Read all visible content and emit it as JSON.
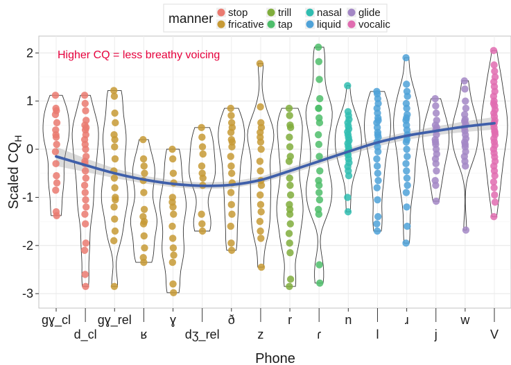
{
  "chart_data": {
    "type": "violin",
    "xlabel": "Phone",
    "ylabel": "Scaled CQ",
    "ylabel_subscript": "H",
    "ylim": [
      -3.3,
      2.35
    ],
    "yticks": [
      -3,
      -2,
      -1,
      0,
      1,
      2
    ],
    "ytick_labels": [
      "-3",
      "-2",
      "-1",
      "0",
      "1",
      "2"
    ],
    "grid": true,
    "annotation": {
      "text": "Higher CQ = less breathy voicing",
      "color": "#e6003c"
    },
    "legend": {
      "title": "manner",
      "position": "top",
      "entries": [
        {
          "label": "stop",
          "color": "#ea7a70"
        },
        {
          "label": "fricative",
          "color": "#c79a35"
        },
        {
          "label": "trill",
          "color": "#80ad3c"
        },
        {
          "label": "tap",
          "color": "#4dbd6a"
        },
        {
          "label": "nasal",
          "color": "#30bdb0"
        },
        {
          "label": "liquid",
          "color": "#4fa2d8"
        },
        {
          "label": "glide",
          "color": "#a387c5"
        },
        {
          "label": "vocalic",
          "color": "#e06cb0"
        }
      ]
    },
    "categories": [
      "gɣ_cl",
      "d_cl",
      "gɣ_rel",
      "ʁ",
      "ɣ",
      "dʒ_rel",
      "ð",
      "z",
      "r",
      "ɾ",
      "n",
      "l",
      "ɹ",
      "j",
      "w",
      "V"
    ],
    "category_manner": [
      "stop",
      "stop",
      "fricative",
      "fricative",
      "fricative",
      "fricative",
      "fricative",
      "fricative",
      "trill",
      "tap",
      "nasal",
      "liquid",
      "liquid",
      "glide",
      "glide",
      "vocalic"
    ],
    "points": [
      [
        1.12,
        0.85,
        0.8,
        0.55,
        0.4,
        0.25,
        0.1,
        -0.05,
        -0.3,
        -0.55,
        -0.7,
        -0.85,
        -1.3,
        -1.38,
        0.72,
        0.3
      ],
      [
        1.12,
        0.95,
        0.8,
        0.6,
        0.5,
        0.4,
        0.3,
        0.2,
        0.1,
        0.0,
        -0.15,
        -0.3,
        -0.45,
        -0.6,
        -0.75,
        -0.9,
        -1.05,
        -1.2,
        -1.35,
        -1.55,
        -1.95,
        -2.1,
        -2.6,
        -2.85,
        0.45,
        -0.25
      ],
      [
        1.22,
        1.1,
        0.75,
        0.55,
        0.3,
        0.05,
        -0.2,
        -0.45,
        -0.6,
        -0.8,
        -1.0,
        -1.2,
        -1.45,
        -1.7,
        -1.9,
        -2.85,
        0.2,
        -1.05
      ],
      [
        0.2,
        -0.2,
        -0.35,
        -0.5,
        -0.65,
        -0.9,
        -1.25,
        -1.4,
        -1.55,
        -1.8,
        -2.05,
        -2.25,
        -2.35,
        -1.5
      ],
      [
        0.0,
        -0.2,
        -0.5,
        -0.7,
        -1.0,
        -1.2,
        -1.35,
        -1.6,
        -1.85,
        -2.05,
        -2.2,
        -2.35,
        -2.8,
        -2.98,
        -1.1
      ],
      [
        0.45,
        0.25,
        0.05,
        -0.1,
        -0.35,
        -0.5,
        -0.75,
        -1.35,
        -1.55,
        -1.7,
        -0.6
      ],
      [
        0.85,
        0.7,
        0.55,
        0.45,
        0.35,
        0.2,
        0.05,
        -0.15,
        -0.35,
        -0.5,
        -0.7,
        -0.9,
        -1.15,
        -1.35,
        -1.6,
        -1.95,
        -2.1,
        0.15
      ],
      [
        1.78,
        0.88,
        0.55,
        0.45,
        0.35,
        0.15,
        0.0,
        -0.25,
        -0.45,
        -0.65,
        -0.75,
        -0.95,
        -1.15,
        -1.3,
        -1.5,
        -1.7,
        -1.85,
        -2.45,
        0.25
      ],
      [
        0.85,
        0.7,
        0.5,
        0.45,
        0.25,
        0.05,
        -0.15,
        -0.25,
        -0.6,
        -0.75,
        -0.95,
        -1.15,
        -1.35,
        -1.55,
        -1.75,
        -1.95,
        -2.15,
        -2.7,
        -2.85,
        -1.25
      ],
      [
        2.12,
        1.82,
        1.45,
        1.05,
        0.85,
        0.65,
        0.55,
        0.3,
        0.1,
        -0.15,
        -0.45,
        -0.65,
        -0.75,
        -1.05,
        -1.25,
        -1.35,
        -2.4,
        -2.78,
        0.85,
        -0.9
      ],
      [
        1.32,
        0.78,
        0.7,
        0.62,
        0.55,
        0.48,
        0.42,
        0.36,
        0.3,
        0.24,
        0.18,
        0.12,
        0.06,
        0.0,
        -0.06,
        -0.12,
        -0.2,
        -0.28,
        -0.36,
        -0.45,
        -0.55,
        -1.0,
        -1.3
      ],
      [
        1.2,
        1.15,
        1.05,
        0.95,
        0.85,
        0.75,
        0.65,
        0.55,
        0.45,
        0.35,
        0.25,
        0.15,
        0.05,
        -0.05,
        -0.2,
        -0.35,
        -0.5,
        -0.65,
        -0.8,
        -1.05,
        -1.4,
        -1.55,
        -1.7,
        0.3,
        0.6
      ],
      [
        1.9,
        1.35,
        1.2,
        1.1,
        0.95,
        0.85,
        0.72,
        0.6,
        0.5,
        0.4,
        0.3,
        0.15,
        0.0,
        -0.15,
        -0.3,
        -0.45,
        -0.6,
        -0.75,
        -0.9,
        -1.2,
        -1.6,
        -1.95,
        0.65,
        0.2
      ],
      [
        1.05,
        0.9,
        0.75,
        0.6,
        0.5,
        0.4,
        0.3,
        0.2,
        0.1,
        0.0,
        -0.1,
        -0.2,
        -0.3,
        -0.45,
        -0.65,
        -0.75,
        -1.08,
        0.45,
        0.15
      ],
      [
        1.42,
        1.25,
        1.0,
        0.85,
        0.72,
        0.62,
        0.52,
        0.45,
        0.38,
        0.3,
        0.22,
        0.15,
        0.05,
        -0.05,
        -0.15,
        -0.25,
        -0.35,
        -1.68,
        0.58,
        0.1
      ],
      [
        2.05,
        1.75,
        1.62,
        1.5,
        1.4,
        1.3,
        1.2,
        1.1,
        1.0,
        0.9,
        0.82,
        0.75,
        0.68,
        0.6,
        0.52,
        0.45,
        0.38,
        0.3,
        0.22,
        0.15,
        0.08,
        0.0,
        -0.08,
        -0.16,
        -0.25,
        -0.35,
        -0.45,
        -0.55,
        -0.68,
        -0.8,
        -0.95,
        -1.1,
        -1.4,
        0.55,
        0.35,
        0.95
      ]
    ],
    "smooth_fit": {
      "color": "#3f5faa",
      "values": [
        -0.15,
        -0.33,
        -0.5,
        -0.63,
        -0.72,
        -0.76,
        -0.74,
        -0.64,
        -0.45,
        -0.25,
        -0.05,
        0.14,
        0.28,
        0.38,
        0.47,
        0.54
      ],
      "ci_half_width": [
        0.2,
        0.14,
        0.1,
        0.08,
        0.07,
        0.07,
        0.07,
        0.07,
        0.07,
        0.07,
        0.07,
        0.08,
        0.08,
        0.09,
        0.11,
        0.13
      ]
    }
  }
}
